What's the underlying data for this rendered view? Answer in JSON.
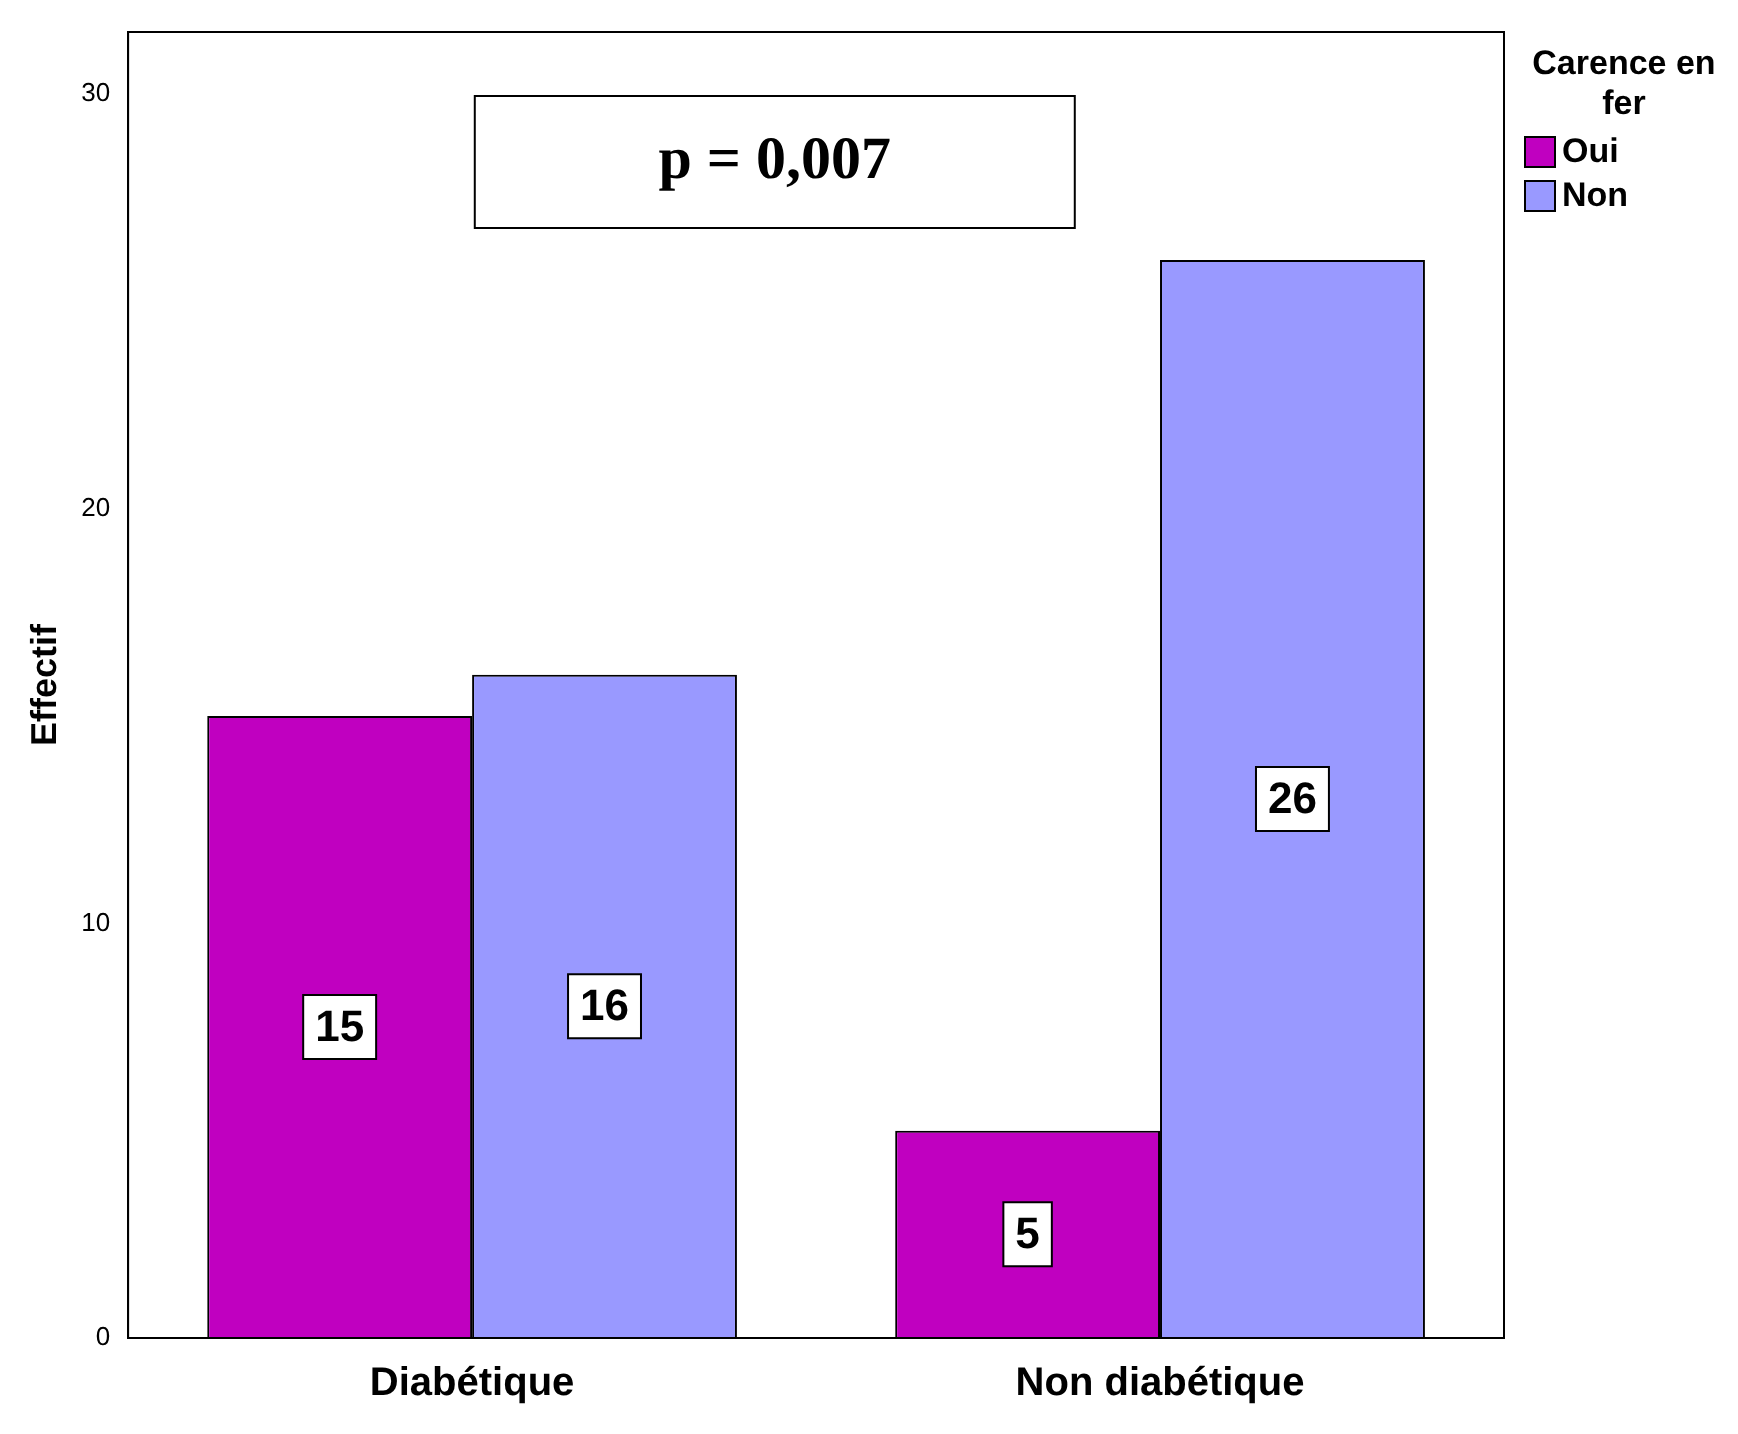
{
  "chart_data": {
    "type": "bar",
    "ylabel": "Effectif",
    "legend_title": "Carence en fer",
    "categories": [
      "Diabétique",
      "Non diabétique"
    ],
    "series": [
      {
        "name": "Oui",
        "color": "#c000c0",
        "values": [
          15,
          5
        ]
      },
      {
        "name": "Non",
        "color": "#9999ff",
        "values": [
          16,
          26
        ]
      }
    ],
    "ylim": [
      0,
      31.5
    ],
    "yticks": [
      0,
      10,
      20,
      30
    ],
    "grid": false,
    "legend": "top right",
    "data_labels": true,
    "annotations": [
      "p = 0,007"
    ]
  }
}
